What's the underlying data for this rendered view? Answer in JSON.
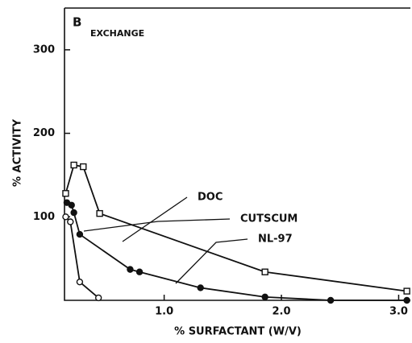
{
  "chart_data": {
    "type": "line",
    "panel_label": "B",
    "annotation": "EXCHANGE",
    "x_label": "% SURFACTANT (W/V)",
    "y_label": "% ACTIVITY",
    "xlim": [
      0.15,
      3.1
    ],
    "ylim": [
      0,
      350
    ],
    "xticks": [
      {
        "value": 1,
        "label": "1.0"
      },
      {
        "value": 2,
        "label": "2.0"
      },
      {
        "value": 3,
        "label": "3.0"
      }
    ],
    "yticks": [
      100,
      200,
      300
    ],
    "series": [
      {
        "name": "DOC",
        "color": "#111111",
        "marker": "square",
        "x": [
          0.16,
          0.23,
          0.31,
          0.45,
          1.86,
          3.07
        ],
        "values": [
          128,
          162,
          160,
          104,
          34,
          11
        ]
      },
      {
        "name": "CUTSCUM",
        "color": "#111111",
        "marker": "open-circle",
        "x": [
          0.16,
          0.2,
          0.28,
          0.44
        ],
        "values": [
          100,
          94,
          22,
          3
        ]
      },
      {
        "name": "NL-97",
        "color": "#111111",
        "marker": "filled-circle",
        "x": [
          0.17,
          0.21,
          0.23,
          0.28,
          0.71,
          0.79,
          1.31,
          1.86,
          2.42,
          3.07
        ],
        "values": [
          117,
          114,
          105,
          79,
          37,
          34,
          15,
          4,
          0,
          0
        ]
      }
    ]
  }
}
